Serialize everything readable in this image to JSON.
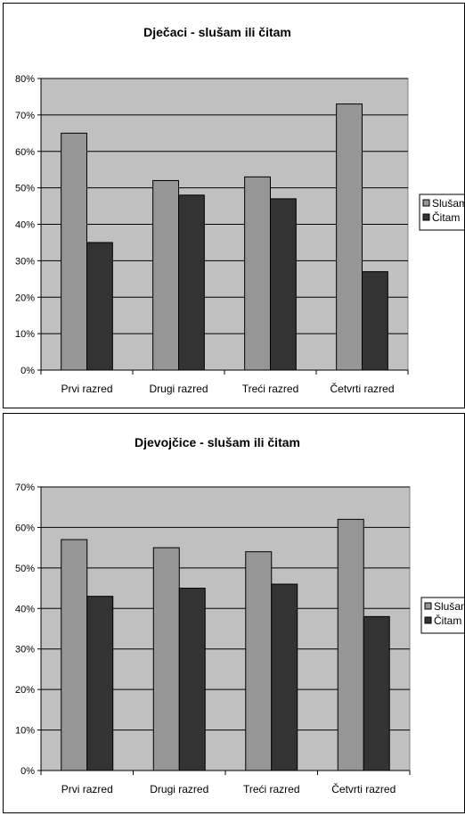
{
  "chart_data": [
    {
      "type": "bar",
      "title": "Dječaci - slušam ili čitam",
      "categories": [
        "Prvi razred",
        "Drugi razred",
        "Treći razred",
        "Četvrti razred"
      ],
      "series": [
        {
          "name": "Slušam",
          "values": [
            65,
            52,
            53,
            73
          ],
          "color": "#969696"
        },
        {
          "name": "Čitam",
          "values": [
            35,
            48,
            47,
            27
          ],
          "color": "#333333"
        }
      ],
      "ylim": [
        0,
        80
      ],
      "yticks": [
        "0%",
        "10%",
        "20%",
        "30%",
        "40%",
        "50%",
        "60%",
        "70%",
        "80%"
      ],
      "grid": true,
      "legend": "right",
      "plot_background": "#c0c0c0"
    },
    {
      "type": "bar",
      "title": "Djevojčice - slušam ili čitam",
      "categories": [
        "Prvi razred",
        "Drugi razred",
        "Treći razred",
        "Četvrti razred"
      ],
      "series": [
        {
          "name": "Slušam",
          "values": [
            57,
            55,
            54,
            62
          ],
          "color": "#969696"
        },
        {
          "name": "Čitam",
          "values": [
            43,
            45,
            46,
            38
          ],
          "color": "#333333"
        }
      ],
      "ylim": [
        0,
        70
      ],
      "yticks": [
        "0%",
        "10%",
        "20%",
        "30%",
        "40%",
        "50%",
        "60%",
        "70%"
      ],
      "grid": true,
      "legend": "right",
      "plot_background": "#c0c0c0"
    }
  ]
}
